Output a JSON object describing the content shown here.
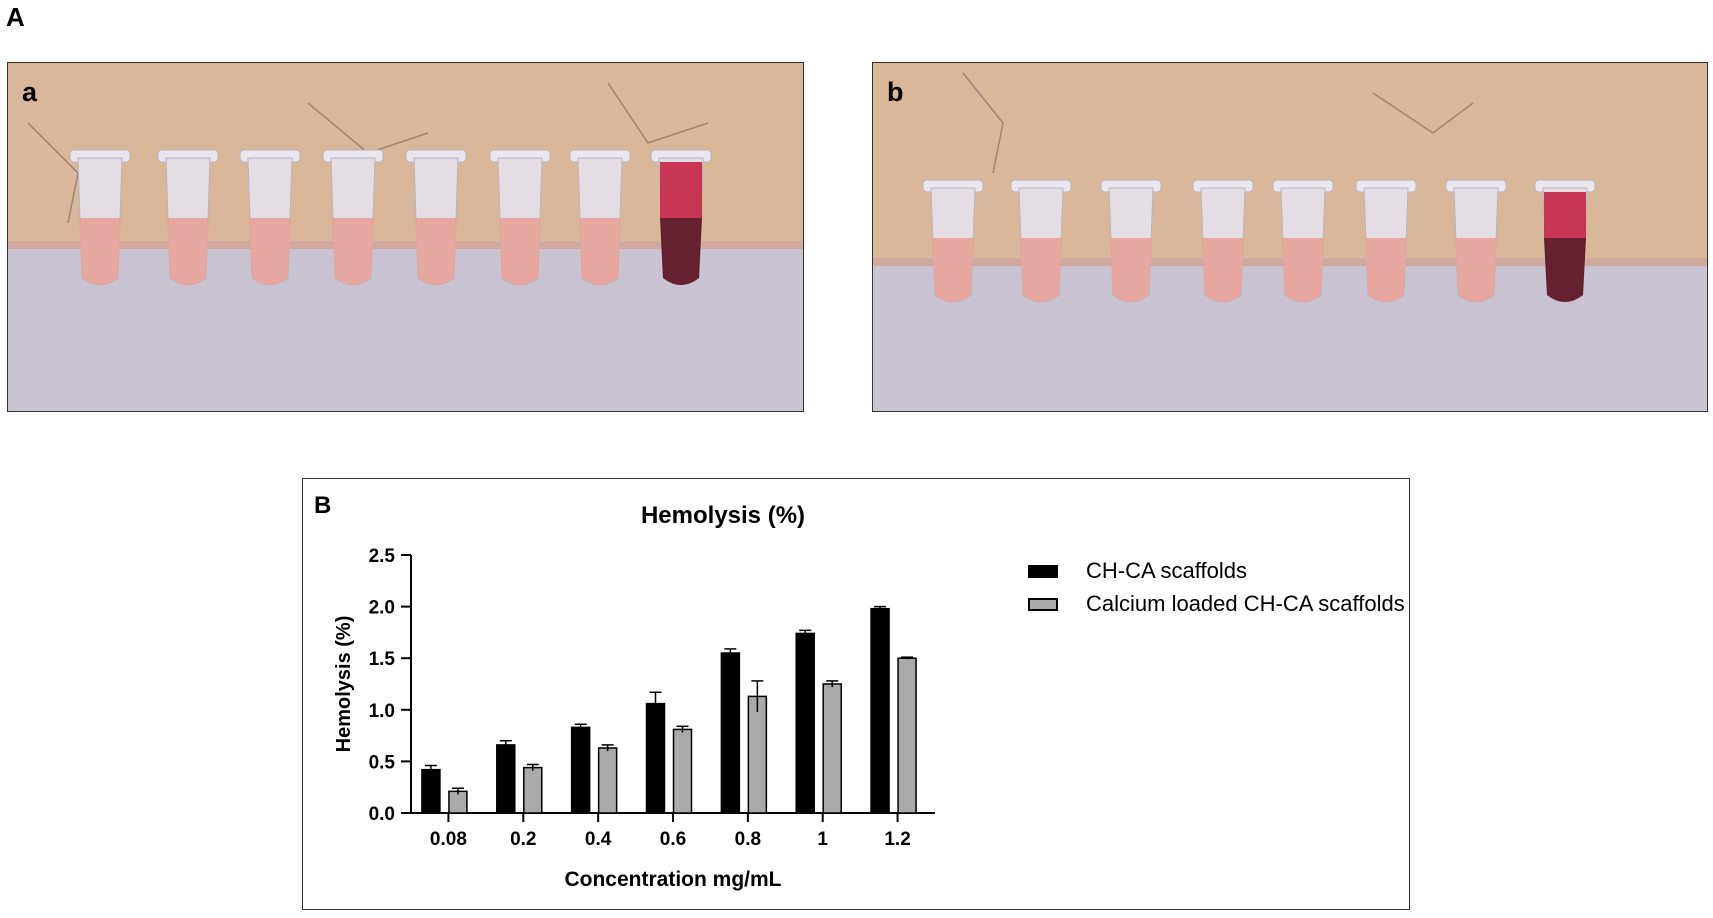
{
  "figure": {
    "panel_A_label": "A",
    "panel_B_label": "B",
    "photo_a_label": "a",
    "photo_b_label": "b"
  },
  "colors": {
    "ch_ca": "#000000",
    "calcium_loaded": "#aaaaaa",
    "wall": "#d8b79a",
    "bench": "#c9c3d2",
    "sample_liquid": "#e7a39b",
    "positive_control": "#5a1020"
  },
  "chart_data": {
    "type": "bar",
    "title": "Hemolysis (%)",
    "xlabel": "Concentration mg/mL",
    "ylabel": "Hemolysis (%)",
    "categories": [
      "0.08",
      "0.2",
      "0.4",
      "0.6",
      "0.8",
      "1",
      "1.2"
    ],
    "ylim": [
      0,
      2.5
    ],
    "yticks": [
      "0.0",
      "0.5",
      "1.0",
      "1.5",
      "2.0",
      "2.5"
    ],
    "grid": false,
    "legend_position": "right",
    "series": [
      {
        "name": "CH-CA scaffolds",
        "color": "#000000",
        "values": [
          0.42,
          0.66,
          0.83,
          1.06,
          1.55,
          1.74,
          1.98
        ],
        "errors": [
          0.04,
          0.04,
          0.03,
          0.11,
          0.04,
          0.03,
          0.02
        ]
      },
      {
        "name": "Calcium loaded CH-CA scaffolds",
        "color": "#aaaaaa",
        "values": [
          0.21,
          0.44,
          0.63,
          0.81,
          1.13,
          1.25,
          1.5
        ],
        "errors": [
          0.03,
          0.03,
          0.03,
          0.03,
          0.15,
          0.03,
          0.01
        ]
      }
    ]
  }
}
